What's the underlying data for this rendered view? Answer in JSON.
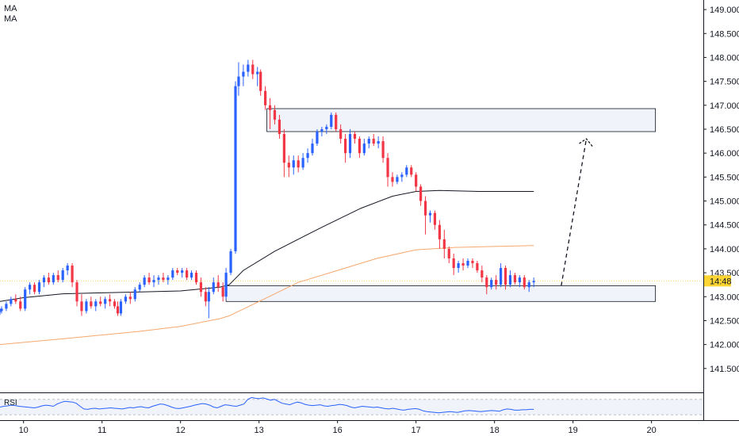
{
  "indicators": {
    "ma1_label": "MA",
    "ma2_label": "MA",
    "rsi_label": "RSI"
  },
  "price_badge": "14:48",
  "colors": {
    "up": "#2962ff",
    "down": "#f23645",
    "ma_long": "#131722",
    "ma_short": "#f7a76c",
    "rsi": "#2962ff",
    "zone_fill": "#f0f3fa",
    "zone_stroke": "#131722"
  },
  "chart_data": {
    "type": "candlestick",
    "ylim": [
      141.0,
      149.2
    ],
    "y_ticks": [
      "141.500",
      "142.000",
      "142.500",
      "143.000",
      "143.500",
      "144.000",
      "144.500",
      "145.000",
      "145.500",
      "146.000",
      "146.500",
      "147.000",
      "147.500",
      "148.000",
      "148.500",
      "149.000"
    ],
    "x_ticks": [
      {
        "label": "10",
        "x": 10
      },
      {
        "label": "11",
        "x": 11
      },
      {
        "label": "12",
        "x": 12
      },
      {
        "label": "13",
        "x": 13
      },
      {
        "label": "16",
        "x": 14
      },
      {
        "label": "17",
        "x": 15
      },
      {
        "label": "18",
        "x": 16
      },
      {
        "label": "19",
        "x": 17
      },
      {
        "label": "20",
        "x": 18
      }
    ],
    "xlim": [
      9.7,
      18.66
    ],
    "last_price": 143.33,
    "zones": [
      {
        "x_start": 13.1,
        "x_end": 18.05,
        "y_low": 146.45,
        "y_high": 146.93
      },
      {
        "x_start": 12.58,
        "x_end": 18.05,
        "y_low": 142.9,
        "y_high": 143.23
      }
    ],
    "projection": {
      "from": [
        16.85,
        143.23
      ],
      "to": [
        17.17,
        146.3
      ]
    },
    "candles": [
      [
        9.7,
        142.7,
        142.75,
        142.62,
        142.7
      ],
      [
        9.72,
        142.7,
        142.8,
        142.65,
        142.75
      ],
      [
        9.78,
        142.75,
        142.9,
        142.7,
        142.85
      ],
      [
        9.84,
        142.85,
        143.0,
        142.8,
        142.95
      ],
      [
        9.9,
        142.95,
        143.05,
        142.85,
        142.9
      ],
      [
        9.96,
        142.9,
        143.0,
        142.7,
        142.75
      ],
      [
        10.02,
        142.75,
        143.2,
        142.7,
        143.15
      ],
      [
        10.08,
        143.15,
        143.3,
        143.05,
        143.25
      ],
      [
        10.14,
        143.25,
        143.3,
        143.05,
        143.1
      ],
      [
        10.2,
        143.1,
        143.35,
        143.05,
        143.3
      ],
      [
        10.26,
        143.3,
        143.45,
        143.2,
        143.4
      ],
      [
        10.32,
        143.4,
        143.5,
        143.25,
        143.3
      ],
      [
        10.38,
        143.3,
        143.5,
        143.25,
        143.45
      ],
      [
        10.44,
        143.45,
        143.55,
        143.3,
        143.35
      ],
      [
        10.5,
        143.35,
        143.6,
        143.3,
        143.55
      ],
      [
        10.56,
        143.55,
        143.7,
        143.45,
        143.65
      ],
      [
        10.62,
        143.65,
        143.7,
        143.2,
        143.3
      ],
      [
        10.68,
        143.3,
        143.35,
        142.8,
        142.9
      ],
      [
        10.74,
        142.9,
        143.05,
        142.6,
        142.7
      ],
      [
        10.8,
        142.7,
        142.95,
        142.65,
        142.9
      ],
      [
        10.86,
        142.9,
        143.0,
        142.75,
        142.8
      ],
      [
        10.92,
        142.8,
        142.95,
        142.7,
        142.9
      ],
      [
        10.98,
        142.9,
        143.0,
        142.8,
        142.85
      ],
      [
        11.04,
        142.85,
        143.0,
        142.75,
        142.95
      ],
      [
        11.1,
        142.95,
        143.05,
        142.8,
        142.9
      ],
      [
        11.16,
        142.9,
        142.95,
        142.75,
        142.8
      ],
      [
        11.2,
        142.8,
        142.9,
        142.6,
        142.65
      ],
      [
        11.24,
        142.65,
        142.95,
        142.6,
        142.9
      ],
      [
        11.3,
        142.9,
        143.05,
        142.85,
        143.0
      ],
      [
        11.36,
        143.0,
        143.1,
        142.85,
        142.95
      ],
      [
        11.42,
        142.95,
        143.2,
        142.9,
        143.15
      ],
      [
        11.48,
        143.15,
        143.3,
        143.1,
        143.25
      ],
      [
        11.54,
        143.25,
        143.45,
        143.2,
        143.4
      ],
      [
        11.6,
        143.4,
        143.5,
        143.25,
        143.3
      ],
      [
        11.66,
        143.3,
        143.45,
        143.2,
        143.35
      ],
      [
        11.72,
        143.35,
        143.45,
        143.25,
        143.4
      ],
      [
        11.78,
        143.4,
        143.5,
        143.3,
        143.35
      ],
      [
        11.84,
        143.35,
        143.45,
        143.25,
        143.4
      ],
      [
        11.9,
        143.4,
        143.6,
        143.35,
        143.55
      ],
      [
        11.96,
        143.55,
        143.6,
        143.45,
        143.5
      ],
      [
        12.02,
        143.5,
        143.6,
        143.4,
        143.55
      ],
      [
        12.08,
        143.55,
        143.6,
        143.35,
        143.4
      ],
      [
        12.14,
        143.4,
        143.55,
        143.35,
        143.5
      ],
      [
        12.2,
        143.5,
        143.55,
        143.25,
        143.3
      ],
      [
        12.26,
        143.3,
        143.4,
        143.0,
        143.1
      ],
      [
        12.32,
        143.1,
        143.2,
        142.8,
        142.9
      ],
      [
        12.36,
        142.9,
        143.2,
        142.55,
        143.1
      ],
      [
        12.42,
        143.1,
        143.4,
        143.05,
        143.3
      ],
      [
        12.48,
        143.3,
        143.45,
        143.1,
        143.2
      ],
      [
        12.54,
        143.2,
        143.3,
        142.9,
        143.0
      ],
      [
        12.58,
        143.0,
        143.6,
        142.95,
        143.5
      ],
      [
        12.64,
        143.5,
        144.0,
        143.45,
        143.95
      ],
      [
        12.7,
        143.95,
        147.5,
        143.9,
        147.4
      ],
      [
        12.74,
        147.4,
        147.9,
        147.2,
        147.6
      ],
      [
        12.8,
        147.6,
        147.85,
        147.4,
        147.7
      ],
      [
        12.86,
        147.7,
        147.95,
        147.6,
        147.85
      ],
      [
        12.92,
        147.85,
        147.95,
        147.55,
        147.65
      ],
      [
        12.98,
        147.65,
        147.8,
        147.4,
        147.7
      ],
      [
        13.02,
        147.7,
        147.75,
        147.2,
        147.3
      ],
      [
        13.08,
        147.3,
        147.4,
        146.9,
        147.0
      ],
      [
        13.14,
        147.0,
        147.15,
        146.5,
        146.9
      ],
      [
        13.2,
        146.9,
        147.0,
        146.6,
        146.7
      ],
      [
        13.26,
        146.7,
        146.8,
        146.3,
        146.4
      ],
      [
        13.32,
        146.4,
        146.5,
        145.5,
        145.8
      ],
      [
        13.38,
        145.8,
        145.95,
        145.5,
        145.7
      ],
      [
        13.44,
        145.7,
        145.95,
        145.55,
        145.85
      ],
      [
        13.5,
        145.85,
        145.95,
        145.6,
        145.7
      ],
      [
        13.56,
        145.7,
        146.0,
        145.65,
        145.9
      ],
      [
        13.62,
        145.9,
        146.1,
        145.8,
        146.0
      ],
      [
        13.68,
        146.0,
        146.3,
        145.95,
        146.2
      ],
      [
        13.74,
        146.2,
        146.5,
        146.15,
        146.45
      ],
      [
        13.8,
        146.45,
        146.55,
        146.35,
        146.5
      ],
      [
        13.86,
        146.5,
        146.6,
        146.4,
        146.55
      ],
      [
        13.92,
        146.55,
        146.85,
        146.5,
        146.8
      ],
      [
        13.98,
        146.8,
        146.85,
        146.45,
        146.5
      ],
      [
        14.04,
        146.5,
        146.6,
        146.2,
        146.3
      ],
      [
        14.1,
        146.3,
        146.4,
        145.8,
        146.0
      ],
      [
        14.16,
        146.0,
        146.5,
        145.9,
        146.4
      ],
      [
        14.22,
        146.4,
        146.45,
        146.2,
        146.3
      ],
      [
        14.28,
        146.3,
        146.35,
        145.9,
        146.0
      ],
      [
        14.34,
        146.0,
        146.3,
        145.95,
        146.2
      ],
      [
        14.4,
        146.2,
        146.35,
        146.1,
        146.3
      ],
      [
        14.46,
        146.3,
        146.4,
        146.15,
        146.2
      ],
      [
        14.52,
        146.2,
        146.35,
        146.1,
        146.25
      ],
      [
        14.58,
        146.25,
        146.35,
        145.8,
        145.9
      ],
      [
        14.64,
        145.9,
        146.0,
        145.3,
        145.5
      ],
      [
        14.7,
        145.5,
        145.6,
        145.3,
        145.4
      ],
      [
        14.76,
        145.4,
        145.55,
        145.35,
        145.5
      ],
      [
        14.82,
        145.5,
        145.6,
        145.4,
        145.55
      ],
      [
        14.88,
        145.55,
        145.75,
        145.5,
        145.7
      ],
      [
        14.94,
        145.7,
        145.75,
        145.5,
        145.55
      ],
      [
        15.0,
        145.55,
        145.6,
        145.2,
        145.3
      ],
      [
        15.06,
        145.3,
        145.35,
        144.9,
        145.0
      ],
      [
        15.12,
        145.0,
        145.1,
        144.3,
        144.7
      ],
      [
        15.18,
        144.7,
        144.8,
        144.55,
        144.75
      ],
      [
        15.24,
        144.75,
        144.8,
        144.4,
        144.5
      ],
      [
        15.3,
        144.5,
        144.6,
        144.0,
        144.2
      ],
      [
        15.36,
        144.2,
        144.4,
        143.8,
        144.0
      ],
      [
        15.42,
        144.0,
        144.05,
        143.7,
        143.8
      ],
      [
        15.48,
        143.8,
        143.9,
        143.45,
        143.6
      ],
      [
        15.54,
        143.6,
        143.75,
        143.5,
        143.7
      ],
      [
        15.6,
        143.7,
        143.8,
        143.55,
        143.65
      ],
      [
        15.66,
        143.65,
        143.8,
        143.6,
        143.75
      ],
      [
        15.72,
        143.75,
        143.8,
        143.6,
        143.7
      ],
      [
        15.78,
        143.7,
        143.75,
        143.5,
        143.55
      ],
      [
        15.84,
        143.55,
        143.65,
        143.3,
        143.4
      ],
      [
        15.9,
        143.4,
        143.45,
        143.05,
        143.2
      ],
      [
        15.96,
        143.2,
        143.4,
        143.15,
        143.35
      ],
      [
        16.02,
        143.35,
        143.45,
        143.15,
        143.25
      ],
      [
        16.08,
        143.25,
        143.7,
        143.2,
        143.6
      ],
      [
        16.14,
        143.6,
        143.65,
        143.15,
        143.25
      ],
      [
        16.2,
        143.25,
        143.55,
        143.2,
        143.45
      ],
      [
        16.26,
        143.45,
        143.5,
        143.25,
        143.3
      ],
      [
        16.32,
        143.3,
        143.45,
        143.2,
        143.4
      ],
      [
        16.38,
        143.4,
        143.45,
        143.15,
        143.2
      ],
      [
        16.44,
        143.2,
        143.35,
        143.1,
        143.3
      ],
      [
        16.5,
        143.3,
        143.4,
        143.2,
        143.33
      ]
    ]
  },
  "rsi_data": {
    "ylim": [
      20,
      80
    ],
    "values": [
      50,
      52,
      53,
      55,
      54,
      52,
      51,
      50,
      49,
      48,
      50,
      53,
      55,
      54,
      52,
      58,
      62,
      65,
      64,
      63,
      60,
      52,
      45,
      44,
      46,
      47,
      45,
      46,
      47,
      48,
      47,
      46,
      45,
      47,
      49,
      48,
      50,
      51,
      49,
      48,
      52,
      55,
      58,
      57,
      54,
      50,
      47,
      46,
      48,
      50,
      52,
      55,
      57,
      59,
      58,
      55,
      50,
      48,
      52,
      56,
      55,
      53,
      52,
      55,
      58,
      70,
      75,
      73,
      72,
      74,
      71,
      68,
      70,
      65,
      60,
      58,
      56,
      60,
      63,
      61,
      57,
      55,
      54,
      55,
      56,
      53,
      52,
      54,
      55,
      57,
      56,
      54,
      50,
      48,
      50,
      52,
      51,
      50,
      49,
      50,
      48,
      46,
      45,
      47,
      45,
      43,
      42,
      44,
      45,
      46,
      44,
      40,
      38,
      37,
      36,
      35,
      36,
      37,
      38,
      37,
      36,
      38,
      40,
      41,
      40,
      39,
      38,
      39,
      40,
      41,
      40,
      39,
      43,
      45,
      44,
      42,
      42,
      43,
      43,
      44,
      44
    ]
  },
  "ma_long": {
    "points": [
      [
        9.7,
        142.9
      ],
      [
        10.0,
        142.98
      ],
      [
        10.5,
        143.06
      ],
      [
        11.0,
        143.08
      ],
      [
        11.5,
        143.1
      ],
      [
        12.0,
        143.12
      ],
      [
        12.5,
        143.2
      ],
      [
        12.62,
        143.25
      ],
      [
        12.8,
        143.55
      ],
      [
        13.2,
        143.95
      ],
      [
        13.8,
        144.45
      ],
      [
        14.3,
        144.85
      ],
      [
        14.7,
        145.1
      ],
      [
        15.0,
        145.2
      ],
      [
        15.3,
        145.22
      ],
      [
        15.8,
        145.2
      ],
      [
        16.5,
        145.2
      ]
    ]
  },
  "ma_short": {
    "points": [
      [
        9.7,
        142.0
      ],
      [
        10.5,
        142.12
      ],
      [
        11.0,
        142.2
      ],
      [
        11.5,
        142.28
      ],
      [
        12.0,
        142.38
      ],
      [
        12.5,
        142.54
      ],
      [
        12.62,
        142.6
      ],
      [
        13.0,
        142.9
      ],
      [
        13.5,
        143.3
      ],
      [
        14.0,
        143.55
      ],
      [
        14.5,
        143.8
      ],
      [
        15.0,
        143.98
      ],
      [
        15.5,
        144.03
      ],
      [
        16.0,
        144.05
      ],
      [
        16.5,
        144.07
      ]
    ]
  }
}
